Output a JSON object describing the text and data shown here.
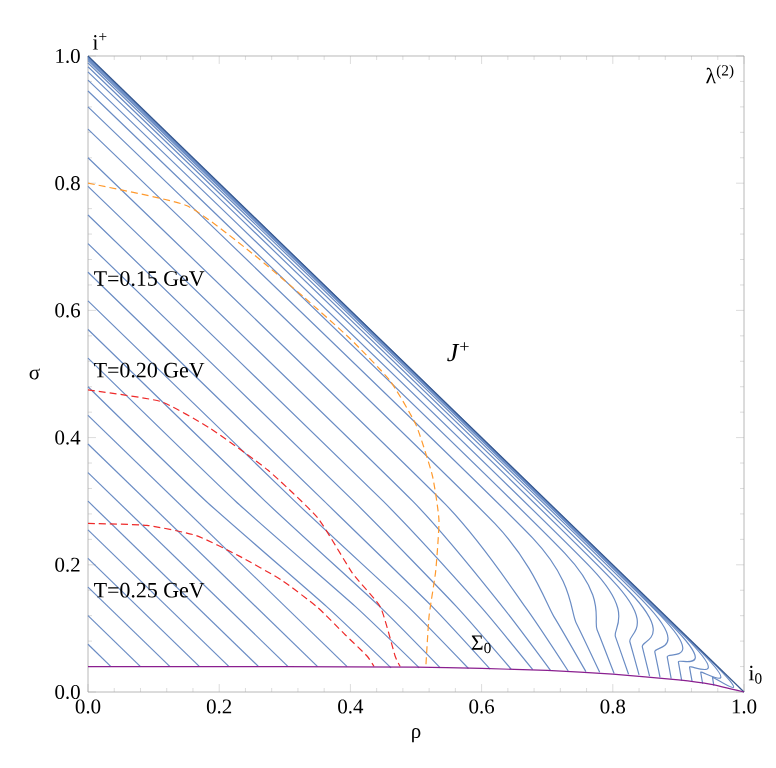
{
  "chart_data": {
    "type": "line",
    "xlabel": "ρ",
    "ylabel": "σ",
    "xlim": [
      0,
      1
    ],
    "ylim": [
      0,
      1
    ],
    "xticks": [
      {
        "value": 0,
        "label": "0.0"
      },
      0.2,
      0.4,
      0.6,
      0.8,
      {
        "value": 1,
        "label": "1.0"
      }
    ],
    "yticks": [
      {
        "value": 0,
        "label": "0.0"
      },
      0.2,
      0.4,
      0.6,
      0.8,
      {
        "value": 1,
        "label": "1.0"
      }
    ],
    "grid": false,
    "marker": "none",
    "line_style": "solid",
    "annotations": [
      "λ$^{(2)}$",
      {
        "text": "i$^{+}$",
        "x": 0,
        "y": 1
      },
      "*J*$^{+}$",
      {
        "text": "T=0.15 GeV",
        "x": 0.005,
        "y": 0.65
      },
      {
        "text": "T=0.20 GeV",
        "x": 0.005,
        "y": 0.506
      },
      {
        "text": "T=0.25 GeV",
        "x": 0.005,
        "y": 0.16
      },
      {
        "text": "Σ$_{0}$",
        "x": 0.6,
        "y": 0.075
      },
      {
        "text": "i$_{0}$",
        "x": 1,
        "y": 0
      }
    ],
    "series": [
      {
        "color": "#6a8cc4",
        "x": [
          0,
          0.035
        ],
        "values": [
          0.075,
          0.04
        ]
      },
      {
        "color": "#6a8cc4",
        "x": [
          0,
          0.08
        ],
        "values": [
          0.12,
          0.04
        ]
      },
      {
        "color": "#6a8cc4",
        "x": [
          0,
          0.125
        ],
        "values": [
          0.165,
          0.04
        ]
      },
      {
        "color": "#6a8cc4",
        "x": [
          0,
          0.17
        ],
        "values": [
          0.21,
          0.04
        ]
      },
      {
        "color": "#6a8cc4",
        "x": [
          0,
          0.215
        ],
        "values": [
          0.255,
          0.04
        ]
      },
      {
        "color": "#6a8cc4",
        "x": [
          0,
          0.26
        ],
        "values": [
          0.3,
          0.04
        ]
      },
      {
        "color": "#6a8cc4",
        "x": [
          0,
          0.305
        ],
        "values": [
          0.345,
          0.04
        ]
      },
      {
        "color": "#6a8cc4",
        "x": [
          0,
          0.35
        ],
        "values": [
          0.39,
          0.04
        ]
      },
      {
        "color": "#6a8cc4",
        "x": [
          0,
          0.395
        ],
        "values": [
          0.435,
          0.04
        ]
      },
      {
        "color": "#6a8cc4",
        "x": [
          0,
          0.18,
          0.363,
          0.462
        ],
        "values": [
          0.48,
          0.3,
          0.135,
          0.038
        ]
      },
      {
        "color": "#6a8cc4",
        "x": [
          0,
          0.225,
          0.407,
          0.505
        ],
        "values": [
          0.525,
          0.3,
          0.135,
          0.038
        ]
      },
      {
        "color": "#6a8cc4",
        "x": [
          0,
          0.27,
          0.444,
          0.537
        ],
        "values": [
          0.57,
          0.3,
          0.135,
          0.038
        ]
      },
      {
        "color": "#6a8cc4",
        "x": [
          0,
          0.315,
          0.487,
          0.58
        ],
        "values": [
          0.615,
          0.3,
          0.135,
          0.037
        ]
      },
      {
        "color": "#6a8cc4",
        "x": [
          0,
          0.36,
          0.524,
          0.613
        ],
        "values": [
          0.66,
          0.3,
          0.135,
          0.036
        ]
      },
      {
        "color": "#6a8cc4",
        "x": [
          0,
          0.405,
          0.561,
          0.645
        ],
        "values": [
          0.705,
          0.3,
          0.135,
          0.036
        ]
      },
      {
        "color": "#6a8cc4",
        "x": [
          0,
          0.45,
          0.598,
          0.678
        ],
        "values": [
          0.75,
          0.3,
          0.135,
          0.035
        ]
      },
      {
        "color": "#6a8cc4",
        "x": [
          0,
          0.495,
          0.631,
          0.705
        ],
        "values": [
          0.795,
          0.3,
          0.135,
          0.034
        ]
      },
      {
        "color": "#6a8cc4",
        "x": [
          0,
          0.545,
          0.667,
          0.732
        ],
        "values": [
          0.84,
          0.295,
          0.133,
          0.033
        ]
      },
      {
        "color": "#6a8cc4",
        "x": [
          0,
          0.62,
          0.71,
          0.759
        ],
        "values": [
          0.885,
          0.265,
          0.119,
          0.032
        ]
      },
      {
        "color": "#6a8cc4",
        "x": [
          0,
          0.678,
          0.744,
          0.78
        ],
        "values": [
          0.92,
          0.242,
          0.109,
          0.031
        ]
      },
      {
        "color": "#6a8cc4",
        "x": [
          0,
          0.727,
          0.776,
          0.802
        ],
        "values": [
          0.945,
          0.218,
          0.098,
          0.029
        ]
      },
      {
        "color": "#6a8cc4",
        "x": [
          0,
          0.768,
          0.804,
          0.824
        ],
        "values": [
          0.962,
          0.194,
          0.087,
          0.028
        ]
      },
      {
        "color": "#6a8cc4",
        "x": [
          0,
          0.799,
          0.826,
          0.84
        ],
        "values": [
          0.975,
          0.176,
          0.079,
          0.027
        ]
      },
      {
        "color": "#6a8cc4",
        "x": [
          0,
          0.825,
          0.845,
          0.856
        ],
        "values": [
          0.983,
          0.158,
          0.071,
          0.025
        ]
      },
      {
        "color": "#6a8cc4",
        "x": [
          0,
          0.848,
          0.864,
          0.872
        ],
        "values": [
          0.989,
          0.141,
          0.063,
          0.023
        ]
      },
      {
        "color": "#6a8cc4",
        "x": [
          0,
          0.871,
          0.883,
          0.889
        ],
        "values": [
          0.993,
          0.122,
          0.055,
          0.021
        ]
      },
      {
        "color": "#6a8cc4",
        "x": [
          0,
          0.89,
          0.9,
          0.905
        ],
        "values": [
          0.995,
          0.105,
          0.047,
          0.018
        ]
      },
      {
        "color": "#6a8cc4",
        "x": [
          0,
          0.91,
          0.917,
          0.921
        ],
        "values": [
          0.997,
          0.087,
          0.039,
          0.016
        ]
      },
      {
        "color": "#6a8cc4",
        "x": [
          0,
          0.929,
          0.934,
          0.937
        ],
        "values": [
          0.998,
          0.069,
          0.031,
          0.013
        ]
      },
      {
        "color": "#6a8cc4",
        "x": [
          0,
          0.948,
          0.952,
          0.954
        ],
        "values": [
          0.999,
          0.051,
          0.023,
          0.01
        ]
      },
      {
        "color": "#35578f",
        "x": [
          0,
          1
        ],
        "values": [
          1,
          0
        ]
      },
      {
        "color": "#ff9a2e",
        "line_style": "dashed",
        "x": [
          0,
          0.15,
          0.25,
          0.33,
          0.4,
          0.46,
          0.5,
          0.525,
          0.535,
          0.53,
          0.52,
          0.515
        ],
        "values": [
          0.8,
          0.765,
          0.69,
          0.62,
          0.555,
          0.49,
          0.42,
          0.34,
          0.27,
          0.19,
          0.12,
          0.04
        ]
      },
      {
        "color": "#ee2a2a",
        "line_style": "dashed",
        "x": [
          0,
          0.11,
          0.187,
          0.274,
          0.35,
          0.403,
          0.446,
          0.468,
          0.476
        ],
        "values": [
          0.475,
          0.457,
          0.414,
          0.349,
          0.274,
          0.187,
          0.133,
          0.057,
          0.04
        ]
      },
      {
        "color": "#ee2a2a",
        "line_style": "dashed",
        "x": [
          0,
          0.09,
          0.165,
          0.23,
          0.295,
          0.35,
          0.392,
          0.425,
          0.436
        ],
        "values": [
          0.265,
          0.262,
          0.246,
          0.214,
          0.176,
          0.133,
          0.09,
          0.057,
          0.04
        ]
      },
      {
        "color": "#8a1f8f",
        "x": [
          0,
          0.3,
          0.5,
          0.6,
          0.7,
          0.8,
          0.9,
          0.95,
          1
        ],
        "values": [
          0.04,
          0.04,
          0.039,
          0.037,
          0.034,
          0.028,
          0.019,
          0.012,
          0
        ]
      }
    ]
  }
}
